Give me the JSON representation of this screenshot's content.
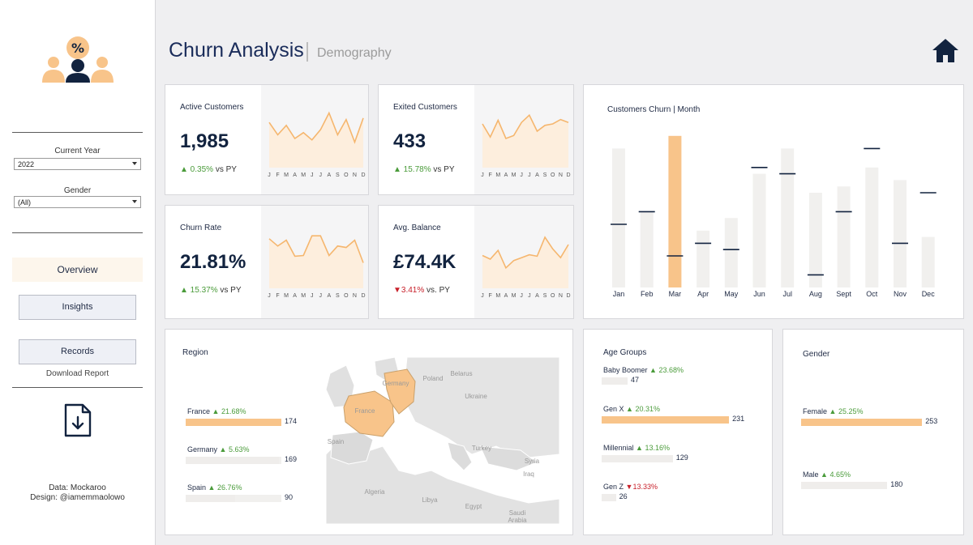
{
  "sidebar": {
    "logo_icon": "customers-percent-icon",
    "filters": [
      {
        "label": "Current Year",
        "value": "2022"
      },
      {
        "label": "Gender",
        "value": "(All)"
      }
    ],
    "nav": {
      "overview": "Overview",
      "insights": "Insights",
      "records": "Records"
    },
    "download_label": "Download Report",
    "download_icon": "file-download-icon",
    "credits": {
      "data": "Data: Mockaroo",
      "design": "Design: @iamemmaolowo"
    }
  },
  "header": {
    "title": "Churn Analysis",
    "subtitle": "Demography",
    "home_icon": "home-icon"
  },
  "kpis": {
    "active": {
      "label": "Active Customers",
      "value": "1,985",
      "delta": "▲ 0.35%",
      "suffix": "vs PY",
      "series": [
        62,
        45,
        58,
        40,
        48,
        38,
        52,
        75,
        45,
        66,
        35,
        68
      ]
    },
    "exited": {
      "label": "Exited Customers",
      "value": "433",
      "delta": "▲ 15.78%",
      "suffix": "vs PY",
      "series": [
        60,
        42,
        65,
        40,
        44,
        62,
        72,
        50,
        58,
        60,
        66,
        62
      ]
    },
    "churn": {
      "label": "Churn Rate",
      "value": "21.81%",
      "delta": "▲ 15.37%",
      "suffix": "vs PY",
      "series": [
        68,
        58,
        66,
        44,
        45,
        72,
        72,
        45,
        58,
        56,
        66,
        35
      ]
    },
    "balance": {
      "label": "Avg. Balance",
      "value": "£74.4K",
      "delta": "▼3.41%",
      "suffix": "vs. PY",
      "series": [
        45,
        40,
        52,
        28,
        38,
        42,
        46,
        44,
        70,
        54,
        42,
        60
      ]
    },
    "months_initials": [
      "J",
      "F",
      "M",
      "A",
      "M",
      "J",
      "J",
      "A",
      "S",
      "O",
      "N",
      "D"
    ]
  },
  "chart_data": {
    "type": "bar",
    "title": "Customers Churn | Month",
    "categories": [
      "Jan",
      "Feb",
      "Mar",
      "Apr",
      "May",
      "Jun",
      "Jul",
      "Aug",
      "Sept",
      "Oct",
      "Nov",
      "Dec"
    ],
    "series": [
      {
        "values": [
          22,
          12,
          24,
          9,
          11,
          18,
          22,
          15,
          16,
          19,
          17,
          8
        ]
      },
      {
        "values": [
          10,
          12,
          5,
          7,
          6,
          19,
          18,
          2,
          12,
          22,
          7,
          15
        ]
      }
    ],
    "highlight_index": 2,
    "colors": {
      "bar": "#f1f0ee",
      "highlight": "#f8c48a",
      "marker": "#12233f"
    }
  },
  "region": {
    "title": "Region",
    "items": [
      {
        "name": "France",
        "delta": "▲ 21.68%",
        "value": 174
      },
      {
        "name": "Germany",
        "delta": "▲ 5.63%",
        "value": 169
      },
      {
        "name": "Spain",
        "delta": "▲ 26.76%",
        "value": 90
      }
    ],
    "map_labels": [
      "Belarus",
      "Poland",
      "Germany",
      "Ukraine",
      "France",
      "Spain",
      "Turkey",
      "Syria",
      "Iraq",
      "Algeria",
      "Libya",
      "Egypt",
      "Saudi Arabia"
    ]
  },
  "age_groups": {
    "title": "Age Groups",
    "items": [
      {
        "name": "Baby Boomer",
        "delta": "▲ 23.68%",
        "value": 47,
        "dir": "up"
      },
      {
        "name": "Gen X",
        "delta": "▲ 20.31%",
        "value": 231,
        "dir": "up"
      },
      {
        "name": "Millennial",
        "delta": "▲ 13.16%",
        "value": 129,
        "dir": "up"
      },
      {
        "name": "Gen Z",
        "delta": "▼13.33%",
        "value": 26,
        "dir": "down"
      }
    ]
  },
  "gender": {
    "title": "Gender",
    "items": [
      {
        "name": "Female",
        "delta": "▲ 25.25%",
        "value": 253
      },
      {
        "name": "Male",
        "delta": "▲ 4.65%",
        "value": 180
      }
    ]
  }
}
